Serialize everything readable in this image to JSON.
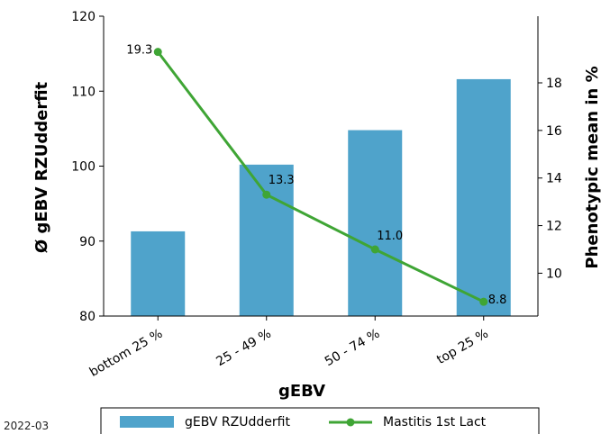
{
  "chart_data": {
    "type": "bar",
    "categories": [
      "bottom 25 %",
      "25 - 49 %",
      "50 - 74 %",
      "top 25 %"
    ],
    "xlabel": "gEBV",
    "ylabel": "Ø gEBV RZUdderfit",
    "y2label": "Phenotypic mean in %",
    "ylim": [
      80,
      120
    ],
    "y_ticks": [
      80,
      90,
      100,
      110,
      120
    ],
    "y2lim": [
      8.2,
      20.8
    ],
    "y2_ticks": [
      10,
      12,
      14,
      16,
      18
    ],
    "series": [
      {
        "name": "gEBV RZUdderfit",
        "type": "bar",
        "axis": "left",
        "color": "#4fa3cb",
        "values": [
          91.3,
          100.2,
          104.8,
          111.6
        ]
      },
      {
        "name": "Mastitis 1st Lact",
        "type": "line",
        "axis": "right",
        "color": "#3fa535",
        "values": [
          19.3,
          13.3,
          11.0,
          8.8
        ],
        "labels": [
          "19.3",
          "13.3",
          "11.0",
          "8.8"
        ]
      }
    ],
    "legend": {
      "position": "bottom",
      "entries": [
        "gEBV RZUdderfit",
        "Mastitis 1st Lact"
      ]
    },
    "grid": false
  },
  "footer": {
    "date": "2022-03"
  }
}
